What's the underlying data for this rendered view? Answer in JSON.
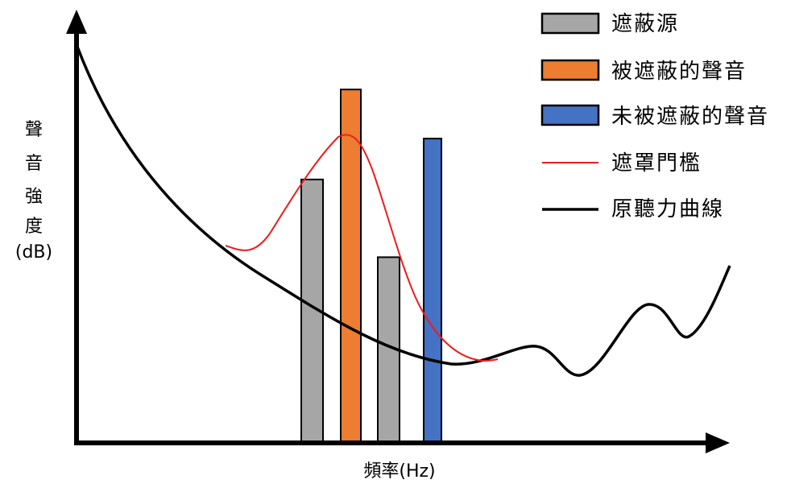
{
  "axes": {
    "y_label_chars": [
      "聲",
      "音",
      "強",
      "度"
    ],
    "y_label_unit": "(dB)",
    "x_label": "頻率(Hz)"
  },
  "legend": {
    "masker": "遮蔽源",
    "masked": "被遮蔽的聲音",
    "unmasked": "未被遮蔽的聲音",
    "mask_threshold": "遮罩門檻",
    "hearing_curve": "原聽力曲線"
  },
  "colors": {
    "masker": "#a6a6a6",
    "masked": "#ed7d31",
    "unmasked": "#4472c4",
    "threshold_line": "#ff0000",
    "hearing_line": "#000000",
    "axis": "#000000"
  },
  "bars": [
    {
      "kind": "masker",
      "level": 0.64
    },
    {
      "kind": "masked",
      "level": 0.86
    },
    {
      "kind": "masker",
      "level": 0.45
    },
    {
      "kind": "unmasked",
      "level": 0.74
    }
  ]
}
